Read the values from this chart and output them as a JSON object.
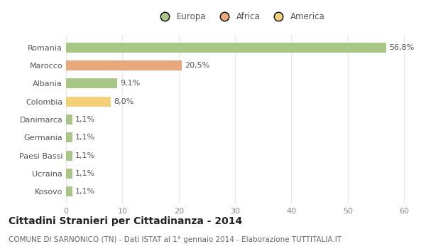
{
  "categories": [
    "Romania",
    "Marocco",
    "Albania",
    "Colombia",
    "Danimarca",
    "Germania",
    "Paesi Bassi",
    "Ucraina",
    "Kosovo"
  ],
  "values": [
    56.8,
    20.5,
    9.1,
    8.0,
    1.1,
    1.1,
    1.1,
    1.1,
    1.1
  ],
  "labels": [
    "56,8%",
    "20,5%",
    "9,1%",
    "8,0%",
    "1,1%",
    "1,1%",
    "1,1%",
    "1,1%",
    "1,1%"
  ],
  "colors": [
    "#a8c685",
    "#e8a87c",
    "#a8c685",
    "#f5d07a",
    "#a8c685",
    "#a8c685",
    "#a8c685",
    "#a8c685",
    "#a8c685"
  ],
  "legend_labels": [
    "Europa",
    "Africa",
    "America"
  ],
  "legend_colors": [
    "#a8c685",
    "#e8a87c",
    "#f5d07a"
  ],
  "title": "Cittadini Stranieri per Cittadinanza - 2014",
  "subtitle": "COMUNE DI SARNONICO (TN) - Dati ISTAT al 1° gennaio 2014 - Elaborazione TUTTITALIA.IT",
  "xlim": [
    0,
    62
  ],
  "xticks": [
    0,
    10,
    20,
    30,
    40,
    50,
    60
  ],
  "background_color": "#ffffff",
  "grid_color": "#e8e8e8",
  "bar_height": 0.55,
  "label_fontsize": 8,
  "title_fontsize": 10,
  "subtitle_fontsize": 7.5,
  "tick_fontsize": 8,
  "legend_fontsize": 8.5
}
